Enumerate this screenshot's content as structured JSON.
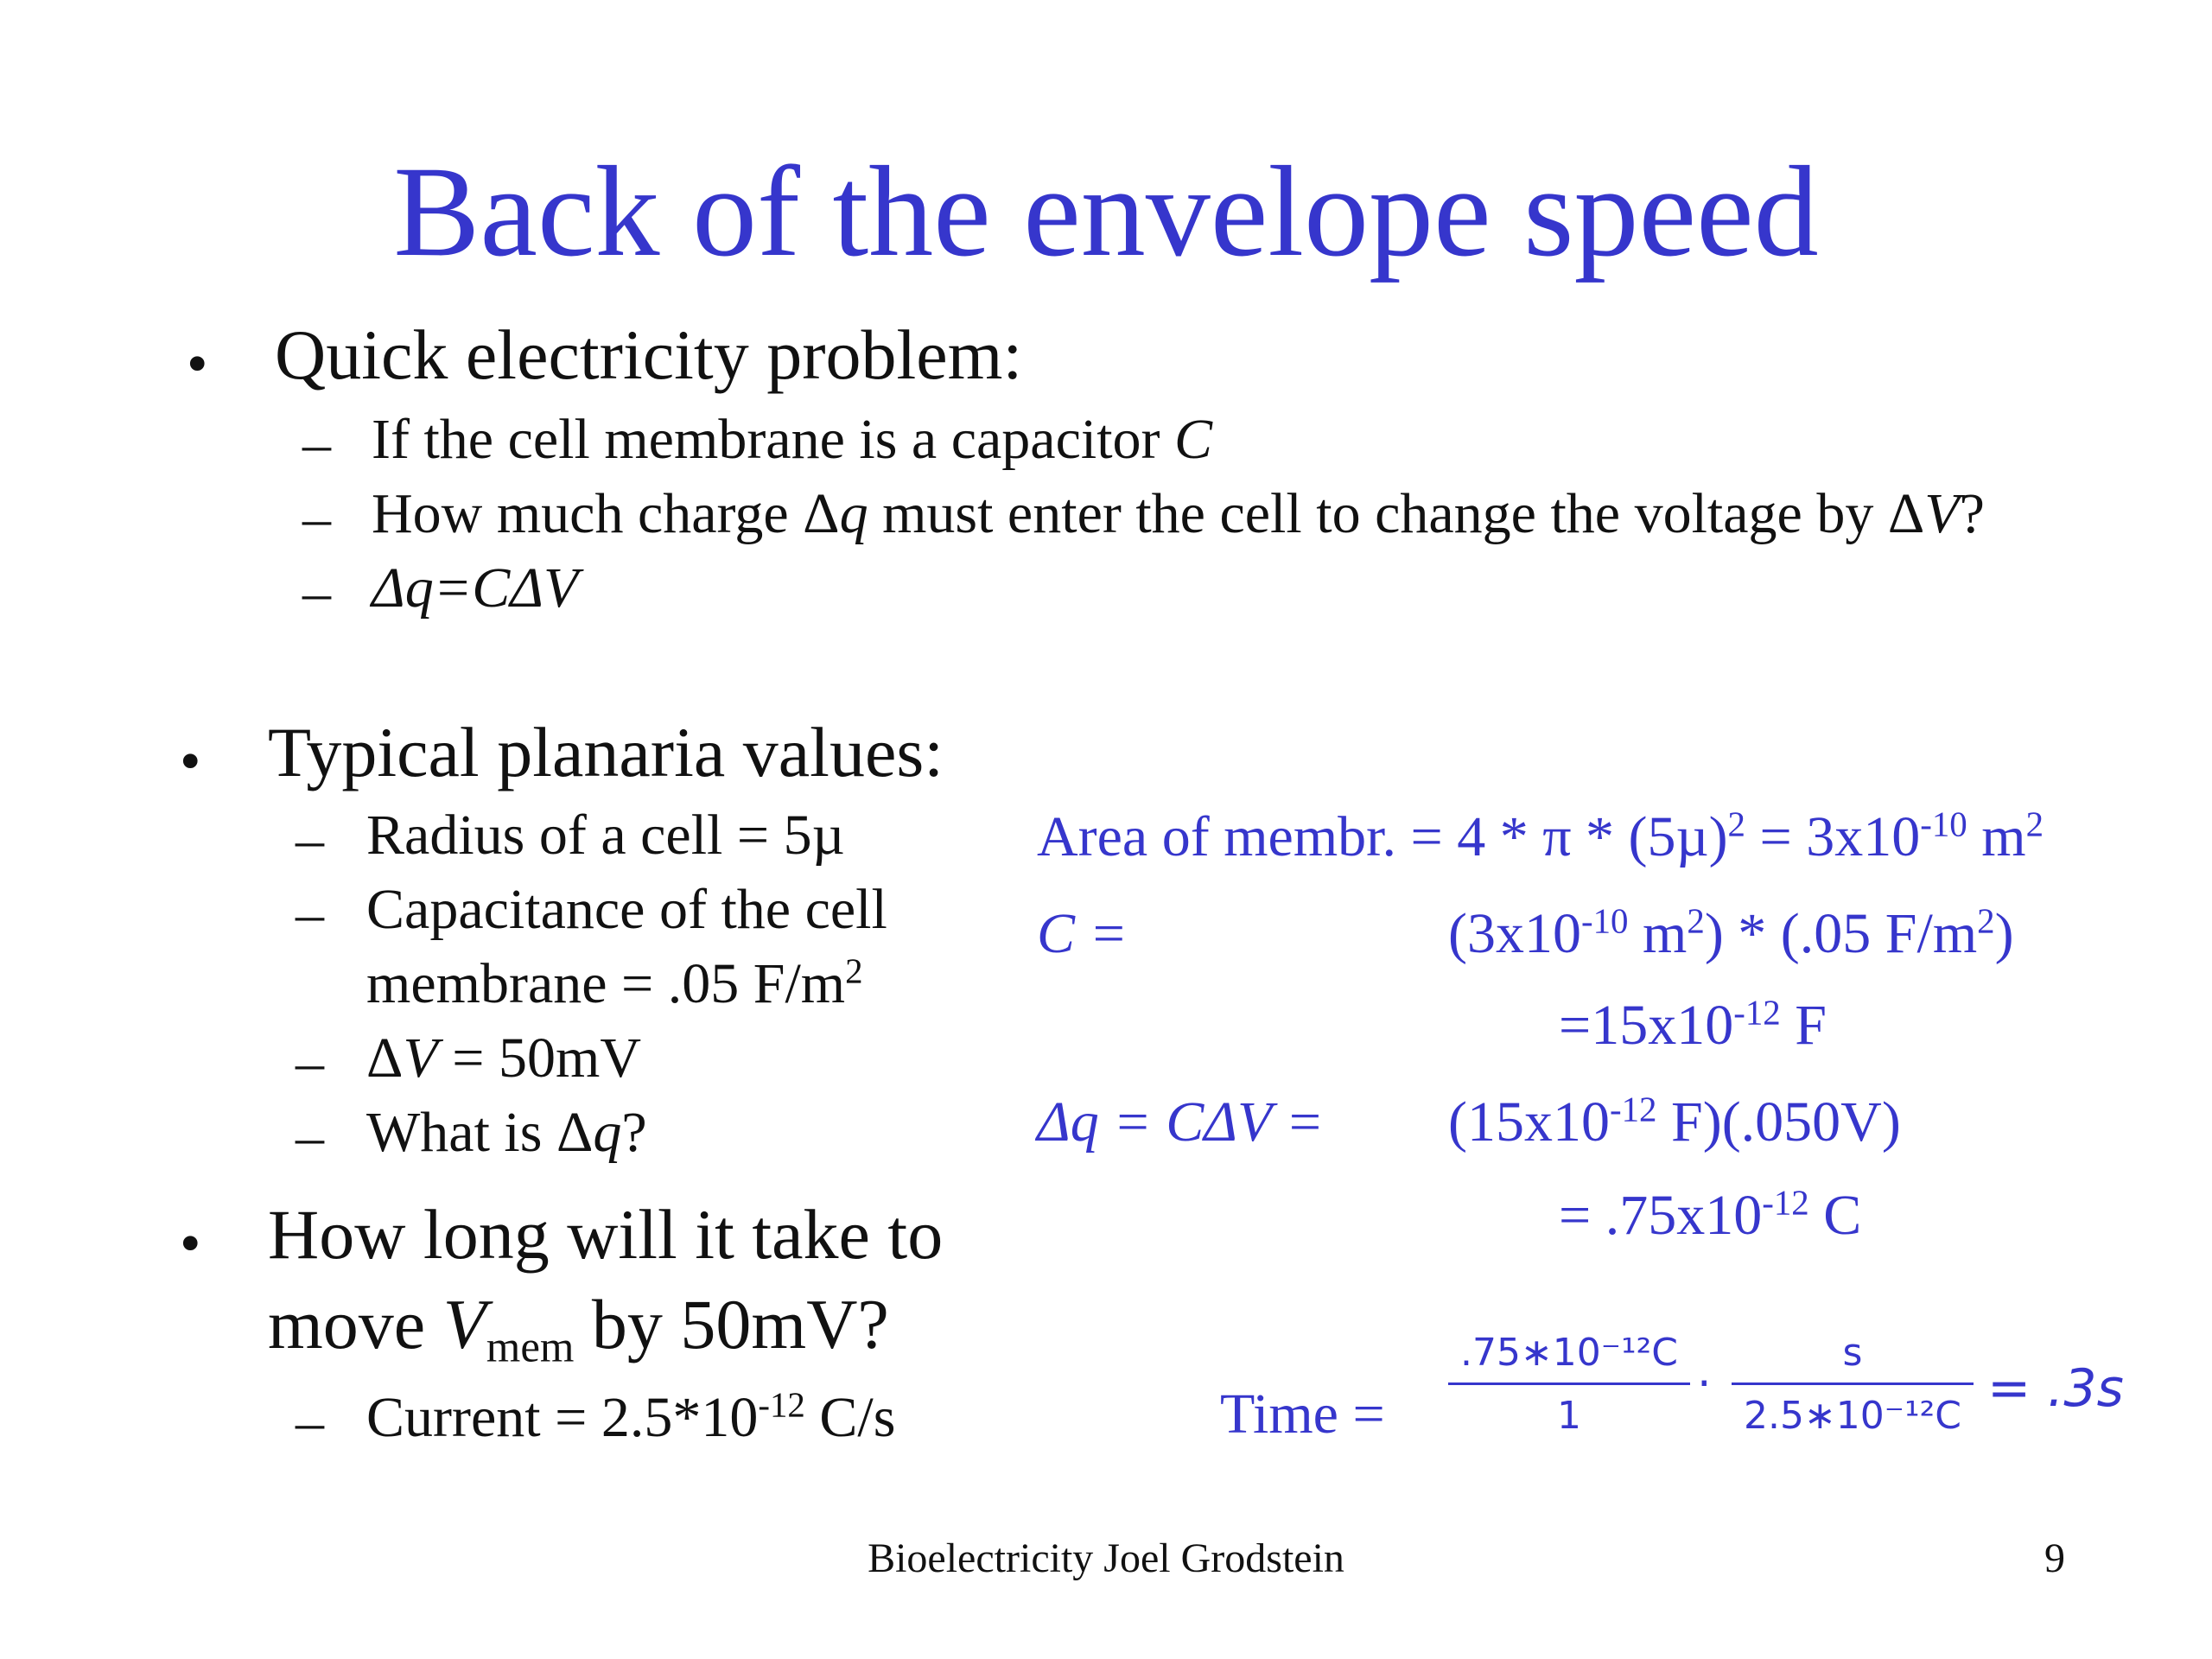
{
  "title": "Back of the envelope speed",
  "bullets": {
    "b1": "Quick electricity problem:",
    "b1_sub": {
      "s1_text": "If the cell membrane is a capacitor ",
      "s1_var": "C",
      "s2_a": "How much charge Δ",
      "s2_q": "q",
      "s2_b": " must enter the cell to change the voltage by Δ",
      "s2_v": "V",
      "s2_c": "?",
      "s3": "Δq=CΔV"
    },
    "b2": "Typical planaria values:",
    "b2_sub": {
      "s1": "Radius of a cell = 5µ",
      "s2_line1": "Capacitance of the cell",
      "s2_line2": "membrane = .05 F/m",
      "s2_sup": "2",
      "s3_a": "Δ",
      "s3_v": "V",
      "s3_b": " = 50mV",
      "s4_a": "What is Δ",
      "s4_q": "q",
      "s4_b": "?"
    },
    "b3_line1": "How long will it take to",
    "b3_line2_a": "move ",
    "b3_line2_v": "V",
    "b3_line2_sub": "mem",
    "b3_line2_b": " by 50mV?",
    "b3_sub": {
      "s1_a": "Current = 2.5*10",
      "s1_sup": "-12",
      "s1_b": " C/s"
    }
  },
  "work": {
    "area_label": "Area of membr. = 4 * π * (5µ)",
    "area_sup": "2",
    "area_eq": " = 3x10",
    "area_exp": "-10",
    "area_unit": " m",
    "area_unit_sup": "2",
    "c_label": "C =",
    "c_a": "(3x10",
    "c_exp": "-10",
    "c_b": " m",
    "c_sup": "2",
    "c_c": ") * (.05 F/m",
    "c_sup2": "2",
    "c_d": ")",
    "c_result_a": "=15x10",
    "c_result_exp": "-12",
    "c_result_b": " F",
    "dq_label": "Δq = CΔV =",
    "dq_a": "(15x10",
    "dq_exp": "-12",
    "dq_b": " F)(.050V)",
    "dq_result_a": "= .75x10",
    "dq_result_exp": "-12",
    "dq_result_b": " C",
    "time_label": "Time =",
    "frac1_num": ".75∗10⁻¹²C",
    "frac1_den": "1",
    "dot": "·",
    "frac2_num": "s",
    "frac2_den": "2.5∗10⁻¹²C",
    "time_result": "= .3s"
  },
  "footer": {
    "center": "Bioelectricity Joel Grodstein",
    "page_number": "9"
  }
}
